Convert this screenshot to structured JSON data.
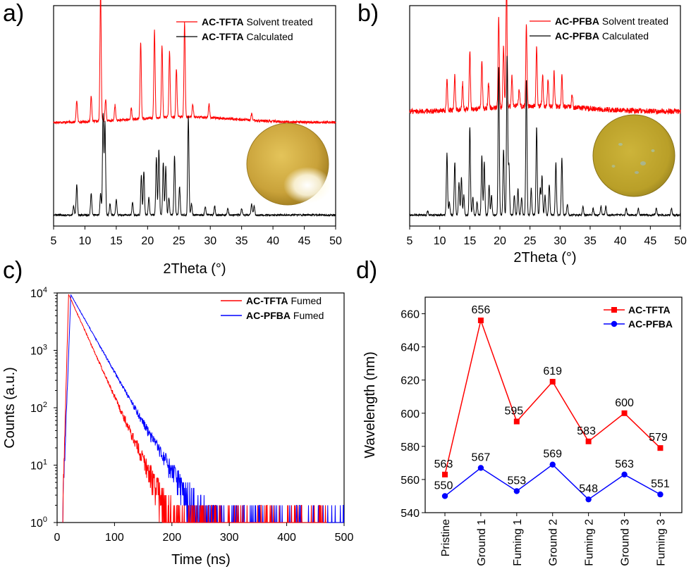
{
  "chart_data": [
    {
      "panel": "a)",
      "type": "line",
      "xlabel": "2Theta (°)",
      "xlim": [
        5,
        50
      ],
      "xticks": [
        5,
        10,
        15,
        20,
        25,
        30,
        35,
        40,
        45,
        50
      ],
      "series": [
        {
          "name_bold": "AC-TFTA",
          "name_rest": " Solvent treated",
          "color": "#ff0000",
          "baseline": 0.47,
          "noise": 0.006,
          "peaks": [
            [
              8.7,
              0.1
            ],
            [
              11.0,
              0.12
            ],
            [
              12.5,
              0.6
            ],
            [
              13.3,
              0.1
            ],
            [
              14.8,
              0.07
            ],
            [
              17.4,
              0.05
            ],
            [
              18.9,
              0.35
            ],
            [
              21.1,
              0.4
            ],
            [
              22.3,
              0.33
            ],
            [
              23.5,
              0.3
            ],
            [
              24.6,
              0.22
            ],
            [
              25.9,
              0.43
            ],
            [
              27.2,
              0.06
            ],
            [
              29.8,
              0.06
            ],
            [
              36.6,
              0.03
            ]
          ]
        },
        {
          "name_bold": "AC-TFTA",
          "name_rest": " Calculated",
          "color": "#000000",
          "baseline": 0.05,
          "noise": 0.004,
          "peaks": [
            [
              8.2,
              0.04
            ],
            [
              8.7,
              0.14
            ],
            [
              11.0,
              0.1
            ],
            [
              12.5,
              0.1
            ],
            [
              12.9,
              0.46
            ],
            [
              13.2,
              0.42
            ],
            [
              14.0,
              0.05
            ],
            [
              15.0,
              0.07
            ],
            [
              17.6,
              0.06
            ],
            [
              19.0,
              0.18
            ],
            [
              19.4,
              0.2
            ],
            [
              20.2,
              0.08
            ],
            [
              21.4,
              0.26
            ],
            [
              21.8,
              0.3
            ],
            [
              22.5,
              0.24
            ],
            [
              22.9,
              0.22
            ],
            [
              23.4,
              0.08
            ],
            [
              24.3,
              0.27
            ],
            [
              25.1,
              0.13
            ],
            [
              26.5,
              0.45
            ],
            [
              27.0,
              0.05
            ],
            [
              29.2,
              0.04
            ],
            [
              30.7,
              0.04
            ],
            [
              32.8,
              0.03
            ],
            [
              35.0,
              0.03
            ],
            [
              36.6,
              0.05
            ],
            [
              37.0,
              0.04
            ]
          ]
        }
      ]
    },
    {
      "panel": "b)",
      "type": "line",
      "xlabel": "2Theta (°)",
      "xlim": [
        5,
        50
      ],
      "xticks": [
        5,
        10,
        15,
        20,
        25,
        30,
        35,
        40,
        45,
        50
      ],
      "series": [
        {
          "name_bold": "AC-PFBA",
          "name_rest": " Solvent treated",
          "color": "#ff0000",
          "baseline": 0.52,
          "noise": 0.012,
          "peaks": [
            [
              11.2,
              0.14
            ],
            [
              12.5,
              0.16
            ],
            [
              13.8,
              0.12
            ],
            [
              15.0,
              0.27
            ],
            [
              17.0,
              0.22
            ],
            [
              18.1,
              0.12
            ],
            [
              19.8,
              0.42
            ],
            [
              20.6,
              0.28
            ],
            [
              21.1,
              0.58
            ],
            [
              22.0,
              0.14
            ],
            [
              23.2,
              0.08
            ],
            [
              24.4,
              0.37
            ],
            [
              26.1,
              0.28
            ],
            [
              27.1,
              0.14
            ],
            [
              28.0,
              0.12
            ],
            [
              29.0,
              0.16
            ],
            [
              30.3,
              0.14
            ],
            [
              32.0,
              0.06
            ]
          ]
        },
        {
          "name_bold": "AC-PFBA",
          "name_rest": " Calculated",
          "color": "#000000",
          "baseline": 0.05,
          "noise": 0.004,
          "peaks": [
            [
              8.0,
              0.02
            ],
            [
              11.2,
              0.28
            ],
            [
              11.6,
              0.06
            ],
            [
              12.5,
              0.24
            ],
            [
              13.2,
              0.15
            ],
            [
              13.6,
              0.17
            ],
            [
              14.0,
              0.09
            ],
            [
              15.0,
              0.4
            ],
            [
              15.5,
              0.08
            ],
            [
              16.2,
              0.06
            ],
            [
              17.0,
              0.27
            ],
            [
              17.4,
              0.24
            ],
            [
              18.2,
              0.14
            ],
            [
              18.6,
              0.09
            ],
            [
              19.8,
              0.68
            ],
            [
              20.6,
              0.3
            ],
            [
              21.2,
              0.72
            ],
            [
              21.5,
              0.23
            ],
            [
              22.4,
              0.09
            ],
            [
              23.0,
              0.12
            ],
            [
              23.6,
              0.08
            ],
            [
              24.4,
              0.62
            ],
            [
              25.2,
              0.12
            ],
            [
              26.1,
              0.4
            ],
            [
              26.7,
              0.12
            ],
            [
              27.0,
              0.18
            ],
            [
              27.5,
              0.09
            ],
            [
              28.2,
              0.14
            ],
            [
              29.3,
              0.24
            ],
            [
              30.3,
              0.26
            ],
            [
              31.2,
              0.05
            ],
            [
              33.8,
              0.04
            ],
            [
              35.5,
              0.03
            ],
            [
              36.8,
              0.04
            ],
            [
              37.6,
              0.04
            ],
            [
              41.0,
              0.03
            ],
            [
              43.0,
              0.03
            ],
            [
              46.0,
              0.03
            ],
            [
              48.5,
              0.03
            ]
          ]
        }
      ]
    },
    {
      "panel": "c)",
      "type": "line",
      "xlabel": "Time (ns)",
      "ylabel": "Counts (a.u.)",
      "xlim": [
        0,
        500
      ],
      "ylim": [
        1,
        10000
      ],
      "yscale": "log",
      "xticks": [
        0,
        100,
        200,
        300,
        400,
        500
      ],
      "yticks": [
        1,
        10,
        100,
        1000,
        10000
      ],
      "ytick_labels": [
        [
          "10",
          "0"
        ],
        [
          "10",
          "1"
        ],
        [
          "10",
          "2"
        ],
        [
          "10",
          "3"
        ],
        [
          "10",
          "4"
        ]
      ],
      "series": [
        {
          "name_bold": "AC-TFTA",
          "name_rest": " Fumed",
          "color": "#ff0000",
          "t_start": 10,
          "t_peak": 20,
          "peak": 9500,
          "tau": 19.5,
          "floor": 2,
          "tail_end": 470
        },
        {
          "name_bold": "AC-PFBA",
          "name_rest": " Fumed",
          "color": "#0000ff",
          "t_start": 10,
          "t_peak": 24,
          "peak": 9300,
          "tau": 24.5,
          "floor": 2,
          "tail_end": 500
        }
      ]
    },
    {
      "panel": "d)",
      "type": "line",
      "ylabel": "Wavelength (nm)",
      "ylim": [
        540,
        670
      ],
      "yticks": [
        540,
        560,
        580,
        600,
        620,
        640,
        660
      ],
      "categories": [
        "Pristine",
        "Ground 1",
        "Fuming 1",
        "Ground 2",
        "Fuming 2",
        "Ground 3",
        "Fuming 3"
      ],
      "series": [
        {
          "name": "AC-TFTA",
          "color": "#ff0000",
          "marker": "square",
          "values": [
            563,
            656,
            595,
            619,
            583,
            600,
            579
          ]
        },
        {
          "name": "AC-PFBA",
          "color": "#0000ff",
          "marker": "circle",
          "values": [
            550,
            567,
            553,
            569,
            548,
            563,
            551
          ]
        }
      ]
    }
  ]
}
